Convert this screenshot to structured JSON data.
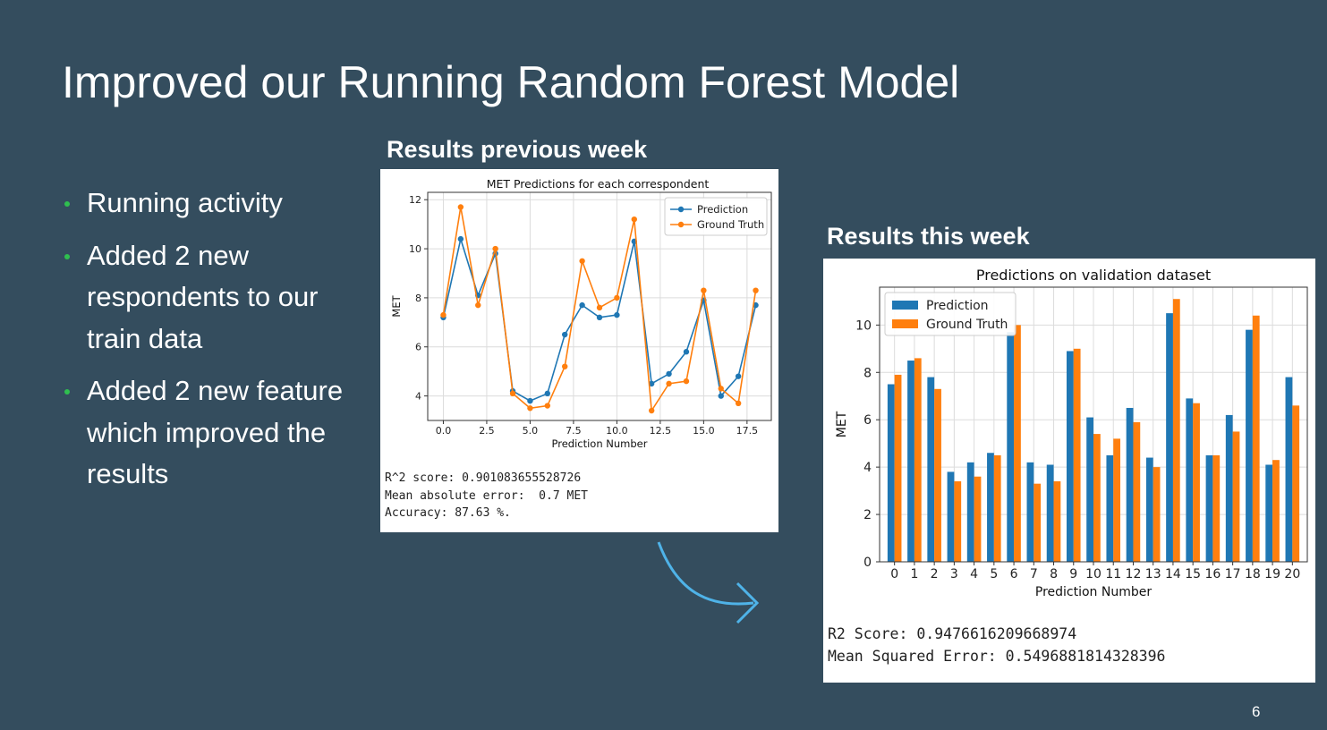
{
  "slide": {
    "title": "Improved our Running Random Forest Model",
    "bullets": [
      "Running activity",
      "Added 2 new respondents to our train data",
      "Added 2 new feature which improved the results"
    ],
    "page_number": "6",
    "colors": {
      "background": "#344d5e",
      "bullet": "#2fbf4f",
      "arrow": "#4fb3e8",
      "prediction": "#1f77b4",
      "ground_truth": "#ff7f0e"
    }
  },
  "previous": {
    "heading": "Results previous week",
    "stats": [
      "R^2 score: 0.901083655528726",
      "Mean absolute error:  0.7 MET",
      "Accuracy: 87.63 %."
    ]
  },
  "current": {
    "heading": "Results this week",
    "stats": [
      "R2 Score: 0.9476616209668974",
      "Mean Squared Error: 0.5496881814328396"
    ]
  },
  "chart_data": [
    {
      "type": "line",
      "title": "MET Predictions for each correspondent",
      "xlabel": "Prediction Number",
      "ylabel": "MET",
      "xlim": [
        -0.9,
        18.9
      ],
      "ylim": [
        3.0,
        12.3
      ],
      "xticks": [
        0,
        2.5,
        5,
        7.5,
        10,
        12.5,
        15,
        17.5
      ],
      "xtick_labels": [
        "0.0",
        "2.5",
        "5.0",
        "7.5",
        "10.0",
        "12.5",
        "15.0",
        "17.5"
      ],
      "yticks": [
        4,
        6,
        8,
        10,
        12
      ],
      "grid": true,
      "legend": "top-right",
      "x": [
        0,
        1,
        2,
        3,
        4,
        5,
        6,
        7,
        8,
        9,
        10,
        11,
        12,
        13,
        14,
        15,
        16,
        17,
        18
      ],
      "series": [
        {
          "name": "Prediction",
          "color": "#1f77b4",
          "values": [
            7.2,
            10.4,
            8.1,
            9.8,
            4.2,
            3.8,
            4.1,
            6.5,
            7.7,
            7.2,
            7.3,
            10.3,
            4.5,
            4.9,
            5.8,
            7.9,
            4.0,
            4.8,
            7.7
          ]
        },
        {
          "name": "Ground Truth",
          "color": "#ff7f0e",
          "values": [
            7.3,
            11.7,
            7.7,
            10.0,
            4.1,
            3.5,
            3.6,
            5.2,
            9.5,
            7.6,
            8.0,
            11.2,
            3.4,
            4.5,
            4.6,
            8.3,
            4.3,
            3.7,
            8.3
          ]
        }
      ]
    },
    {
      "type": "bar",
      "title": "Predictions on validation dataset",
      "xlabel": "Prediction Number",
      "ylabel": "MET",
      "ylim": [
        0,
        11.6
      ],
      "yticks": [
        0,
        2,
        4,
        6,
        8,
        10
      ],
      "grid": true,
      "legend": "top-left",
      "categories": [
        "0",
        "1",
        "2",
        "3",
        "4",
        "5",
        "6",
        "7",
        "8",
        "9",
        "10",
        "11",
        "12",
        "13",
        "14",
        "15",
        "16",
        "17",
        "18",
        "19",
        "20"
      ],
      "series": [
        {
          "name": "Prediction",
          "color": "#1f77b4",
          "values": [
            7.5,
            8.5,
            7.8,
            3.8,
            4.2,
            4.6,
            9.7,
            4.2,
            4.1,
            8.9,
            6.1,
            4.5,
            6.5,
            4.4,
            10.5,
            6.9,
            4.5,
            6.2,
            9.8,
            4.1,
            7.8
          ]
        },
        {
          "name": "Ground Truth",
          "color": "#ff7f0e",
          "values": [
            7.9,
            8.6,
            7.3,
            3.4,
            3.6,
            4.5,
            10.0,
            3.3,
            3.4,
            9.0,
            5.4,
            5.2,
            5.9,
            4.0,
            11.1,
            6.7,
            4.5,
            5.5,
            10.4,
            4.3,
            6.6
          ]
        }
      ]
    }
  ]
}
